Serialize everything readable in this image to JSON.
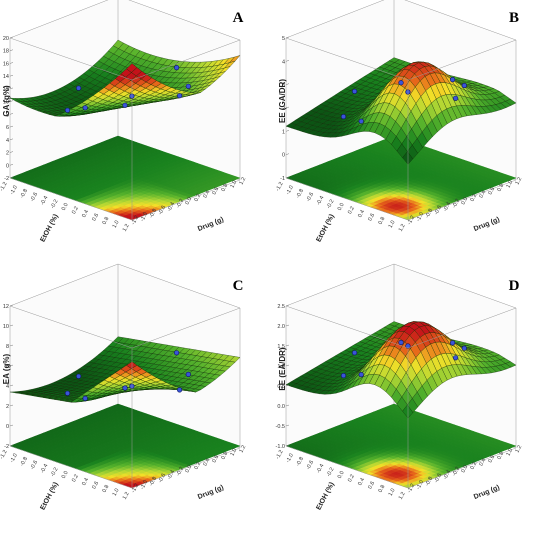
{
  "chart_data": [
    {
      "type": "surface3d",
      "panel": "A",
      "zlabel": "GA (g%)",
      "xlabel": "Drug (g)",
      "ylabel": "EtOH (%)",
      "x_ticks": [
        "-1.2",
        "-1.0",
        "-0.8",
        "-0.6",
        "-0.4",
        "-0.2",
        "0.0",
        "0.2",
        "0.4",
        "0.6",
        "0.8",
        "1.0",
        "1.2"
      ],
      "y_ticks": [
        "-1.2",
        "-1.0",
        "-0.8",
        "-0.6",
        "-0.4",
        "-0.2",
        "0.0",
        "0.2",
        "0.4",
        "0.6",
        "0.8",
        "1.0",
        "1.2"
      ],
      "z_ticks": [
        "-2",
        "0",
        "2",
        "4",
        "6",
        "8",
        "10",
        "12",
        "14",
        "16",
        "18",
        "20"
      ],
      "zlim": [
        -2,
        20
      ],
      "colormap": [
        "#0d5a14",
        "#1e8a1e",
        "#58b52c",
        "#b9d935",
        "#f2e028",
        "#e86a1a",
        "#c4121a"
      ],
      "grid": "dense surface mesh",
      "legend": "none"
    },
    {
      "type": "surface3d",
      "panel": "B",
      "zlabel": "EE (GA/DR)",
      "xlabel": "Drug (g)",
      "ylabel": "EtOH (%)",
      "x_ticks": [
        "-1.2",
        "-1.0",
        "-0.8",
        "-0.6",
        "-0.4",
        "-0.2",
        "0.0",
        "0.2",
        "0.4",
        "0.6",
        "0.8",
        "1.0",
        "1.2"
      ],
      "y_ticks": [
        "-1.2",
        "-1.0",
        "-0.8",
        "-0.6",
        "-0.4",
        "-0.2",
        "0.0",
        "0.2",
        "0.4",
        "0.6",
        "0.8",
        "1.0",
        "1.2"
      ],
      "z_ticks": [
        "-1",
        "0",
        "1",
        "2",
        "3",
        "4",
        "5"
      ],
      "zlim": [
        -1,
        5
      ],
      "colormap": [
        "#0d5a14",
        "#1e8a1e",
        "#58b52c",
        "#b9d935",
        "#f2e028",
        "#e86a1a",
        "#c4121a"
      ],
      "grid": "dense surface mesh",
      "legend": "none"
    },
    {
      "type": "surface3d",
      "panel": "C",
      "zlabel": "EA (g%)",
      "xlabel": "Drug (g)",
      "ylabel": "EtOH (%)",
      "x_ticks": [
        "-1.2",
        "-1.0",
        "-0.8",
        "-0.6",
        "-0.4",
        "-0.2",
        "0.0",
        "0.2",
        "0.4",
        "0.6",
        "0.8",
        "1.0",
        "1.2"
      ],
      "y_ticks": [
        "-1.2",
        "-1.0",
        "-0.8",
        "-0.6",
        "-0.4",
        "-0.2",
        "0.0",
        "0.2",
        "0.4",
        "0.6",
        "0.8",
        "1.0",
        "1.2"
      ],
      "z_ticks": [
        "-2",
        "0",
        "2",
        "4",
        "6",
        "8",
        "10",
        "12"
      ],
      "zlim": [
        -2,
        12
      ],
      "colormap": [
        "#0d5a14",
        "#1e8a1e",
        "#58b52c",
        "#b9d935",
        "#f2e028",
        "#e86a1a",
        "#c4121a"
      ],
      "grid": "dense surface mesh",
      "legend": "none"
    },
    {
      "type": "surface3d",
      "panel": "D",
      "zlabel": "EE (EA/DR)",
      "xlabel": "Drug (g)",
      "ylabel": "EtOH (%)",
      "x_ticks": [
        "-1.2",
        "-1.0",
        "-0.8",
        "-0.6",
        "-0.4",
        "-0.2",
        "0.0",
        "0.2",
        "0.4",
        "0.6",
        "0.8",
        "1.0",
        "1.2"
      ],
      "y_ticks": [
        "-1.2",
        "-1.0",
        "-0.8",
        "-0.6",
        "-0.4",
        "-0.2",
        "0.0",
        "0.2",
        "0.4",
        "0.6",
        "0.8",
        "1.0",
        "1.2"
      ],
      "z_ticks": [
        "-1.0",
        "-0.5",
        "0.0",
        "0.5",
        "1.0",
        "1.5",
        "2.0",
        "2.5"
      ],
      "zlim": [
        -1.0,
        2.5
      ],
      "colormap": [
        "#0d5a14",
        "#1e8a1e",
        "#58b52c",
        "#b9d935",
        "#f2e028",
        "#e86a1a",
        "#c4121a"
      ],
      "grid": "dense surface mesh",
      "legend": "none"
    }
  ]
}
